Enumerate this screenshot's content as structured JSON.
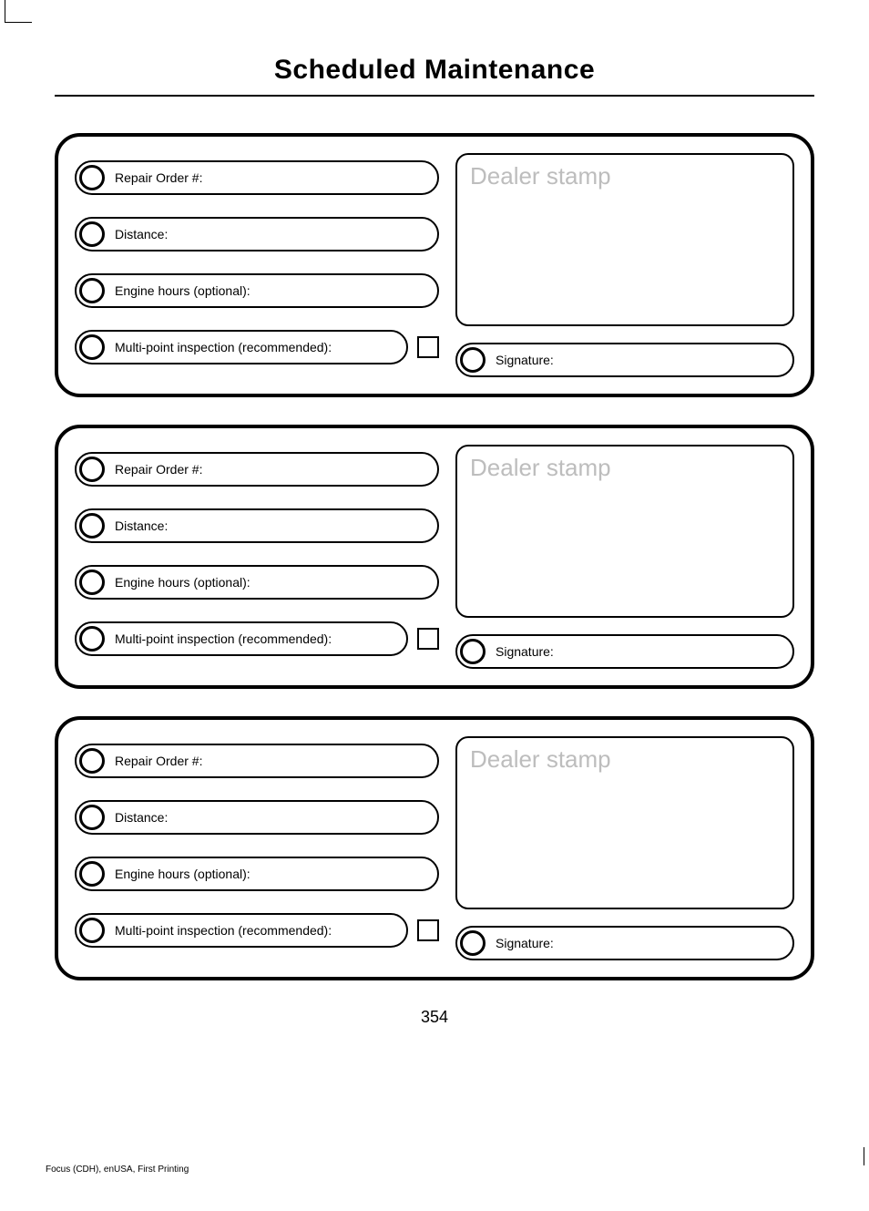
{
  "title": "Scheduled Maintenance",
  "page_number": "354",
  "footer": "Focus (CDH), enUSA, First Printing",
  "stamp_placeholder": "Dealer stamp",
  "field_labels": {
    "repair_order": "Repair Order #:",
    "distance": "Distance:",
    "engine_hours": "Engine hours (optional):",
    "multi_point": "Multi-point inspection (recommended):",
    "signature": "Signature:"
  },
  "colors": {
    "border": "#000000",
    "background": "#ffffff",
    "placeholder": "#bdbdbd"
  }
}
